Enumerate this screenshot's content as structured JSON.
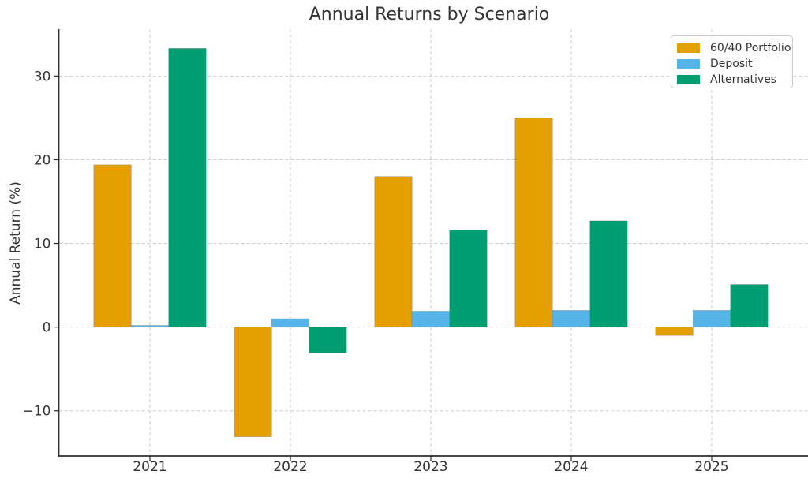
{
  "figure": {
    "background": "#ffffff",
    "text_color": "#333333",
    "axis_color": "#2e2e2e",
    "grid_color": "#cccccc"
  },
  "chart_data": {
    "type": "bar",
    "title": "Annual Returns by Scenario",
    "xlabel": "",
    "ylabel": "Annual Return (%)",
    "categories": [
      "2021",
      "2022",
      "2023",
      "2024",
      "2025"
    ],
    "series": [
      {
        "name": "60/40 Portfolio",
        "color": "#E69F00",
        "values": [
          19.4,
          -13.1,
          18.0,
          25.0,
          -1.0
        ]
      },
      {
        "name": "Deposit",
        "color": "#56B4E9",
        "values": [
          0.2,
          1.0,
          1.9,
          2.0,
          2.0
        ]
      },
      {
        "name": "Alternatives",
        "color": "#009E73",
        "values": [
          33.3,
          -3.1,
          11.6,
          12.7,
          5.1
        ]
      }
    ],
    "yticks": [
      -10,
      0,
      10,
      20,
      30
    ],
    "ytick_labels": [
      "−10",
      "0",
      "10",
      "20",
      "30"
    ],
    "ylim": [
      -15.4,
      35.6
    ],
    "grid": true,
    "grid_style": "dashed",
    "legend_position": "upper-right",
    "bar_group_width": 0.8
  }
}
